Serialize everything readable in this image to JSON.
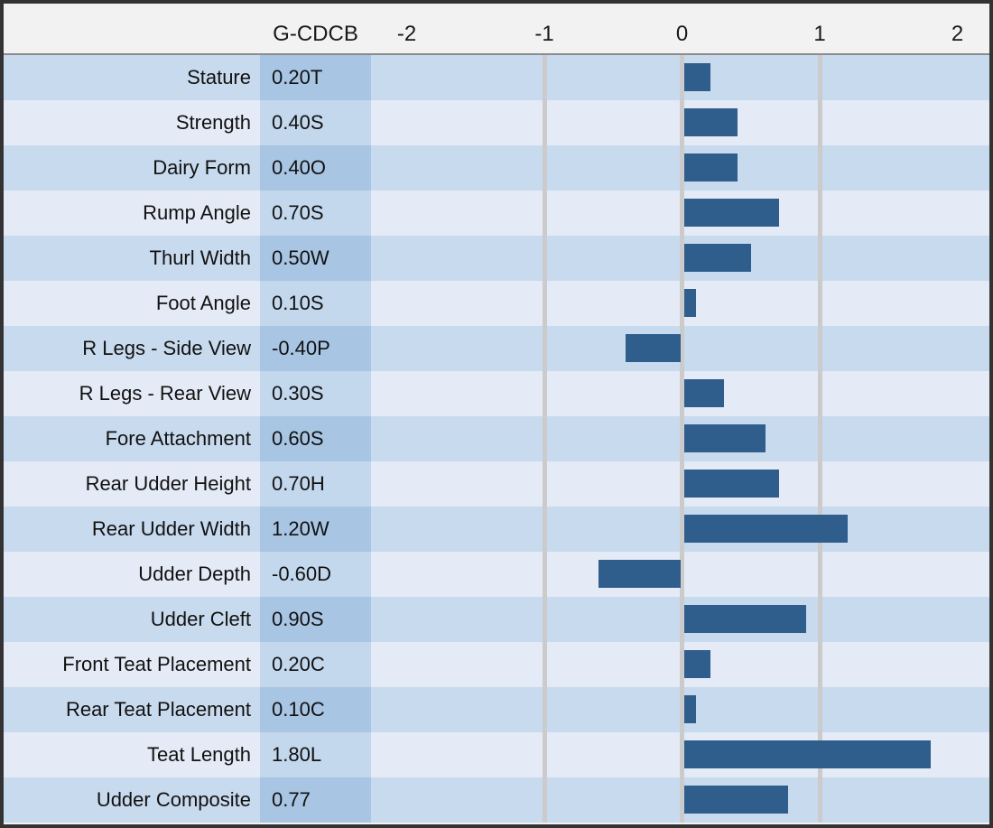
{
  "header": {
    "value_column_label": "G-CDCB",
    "axis_ticks": [
      {
        "label": "-2",
        "value": -2
      },
      {
        "label": "-1",
        "value": -1
      },
      {
        "label": "0",
        "value": 0
      },
      {
        "label": "1",
        "value": 1
      },
      {
        "label": "2",
        "value": 2
      }
    ]
  },
  "chart_data": {
    "type": "bar",
    "orientation": "horizontal",
    "title": "",
    "categories": [
      "Stature",
      "Strength",
      "Dairy Form",
      "Rump Angle",
      "Thurl Width",
      "Foot Angle",
      "R Legs - Side View",
      "R Legs - Rear View",
      "Fore Attachment",
      "Rear Udder Height",
      "Rear Udder Width",
      "Udder Depth",
      "Udder Cleft",
      "Front Teat Placement",
      "Rear Teat Placement",
      "Teat Length",
      "Udder Composite"
    ],
    "values": [
      0.2,
      0.4,
      0.4,
      0.7,
      0.5,
      0.1,
      -0.4,
      0.3,
      0.6,
      0.7,
      1.2,
      -0.6,
      0.9,
      0.2,
      0.1,
      1.8,
      0.77
    ],
    "value_labels": [
      "0.20T",
      "0.40S",
      "0.40O",
      "0.70S",
      "0.50W",
      "0.10S",
      "-0.40P",
      "0.30S",
      "0.60S",
      "0.70H",
      "1.20W",
      "-0.60D",
      "0.90S",
      "0.20C",
      "0.10C",
      "1.80L",
      "0.77"
    ],
    "xlim": [
      -2.25,
      2.25
    ],
    "gridlines_at": [
      -1,
      0,
      1
    ],
    "legend": "none",
    "grid": "vertical-major-only"
  },
  "colors": {
    "bar": "#2F5D8C",
    "row_odd_bg": "#C8DAEE",
    "row_even_bg": "#E4EBF6",
    "value_cell_odd_bg": "#A8C5E3",
    "value_cell_even_bg": "#C3D7ED",
    "gridline": "#CBCBCB",
    "header_bg": "#F2F2F2",
    "border": "#333333",
    "text": "#111111"
  }
}
